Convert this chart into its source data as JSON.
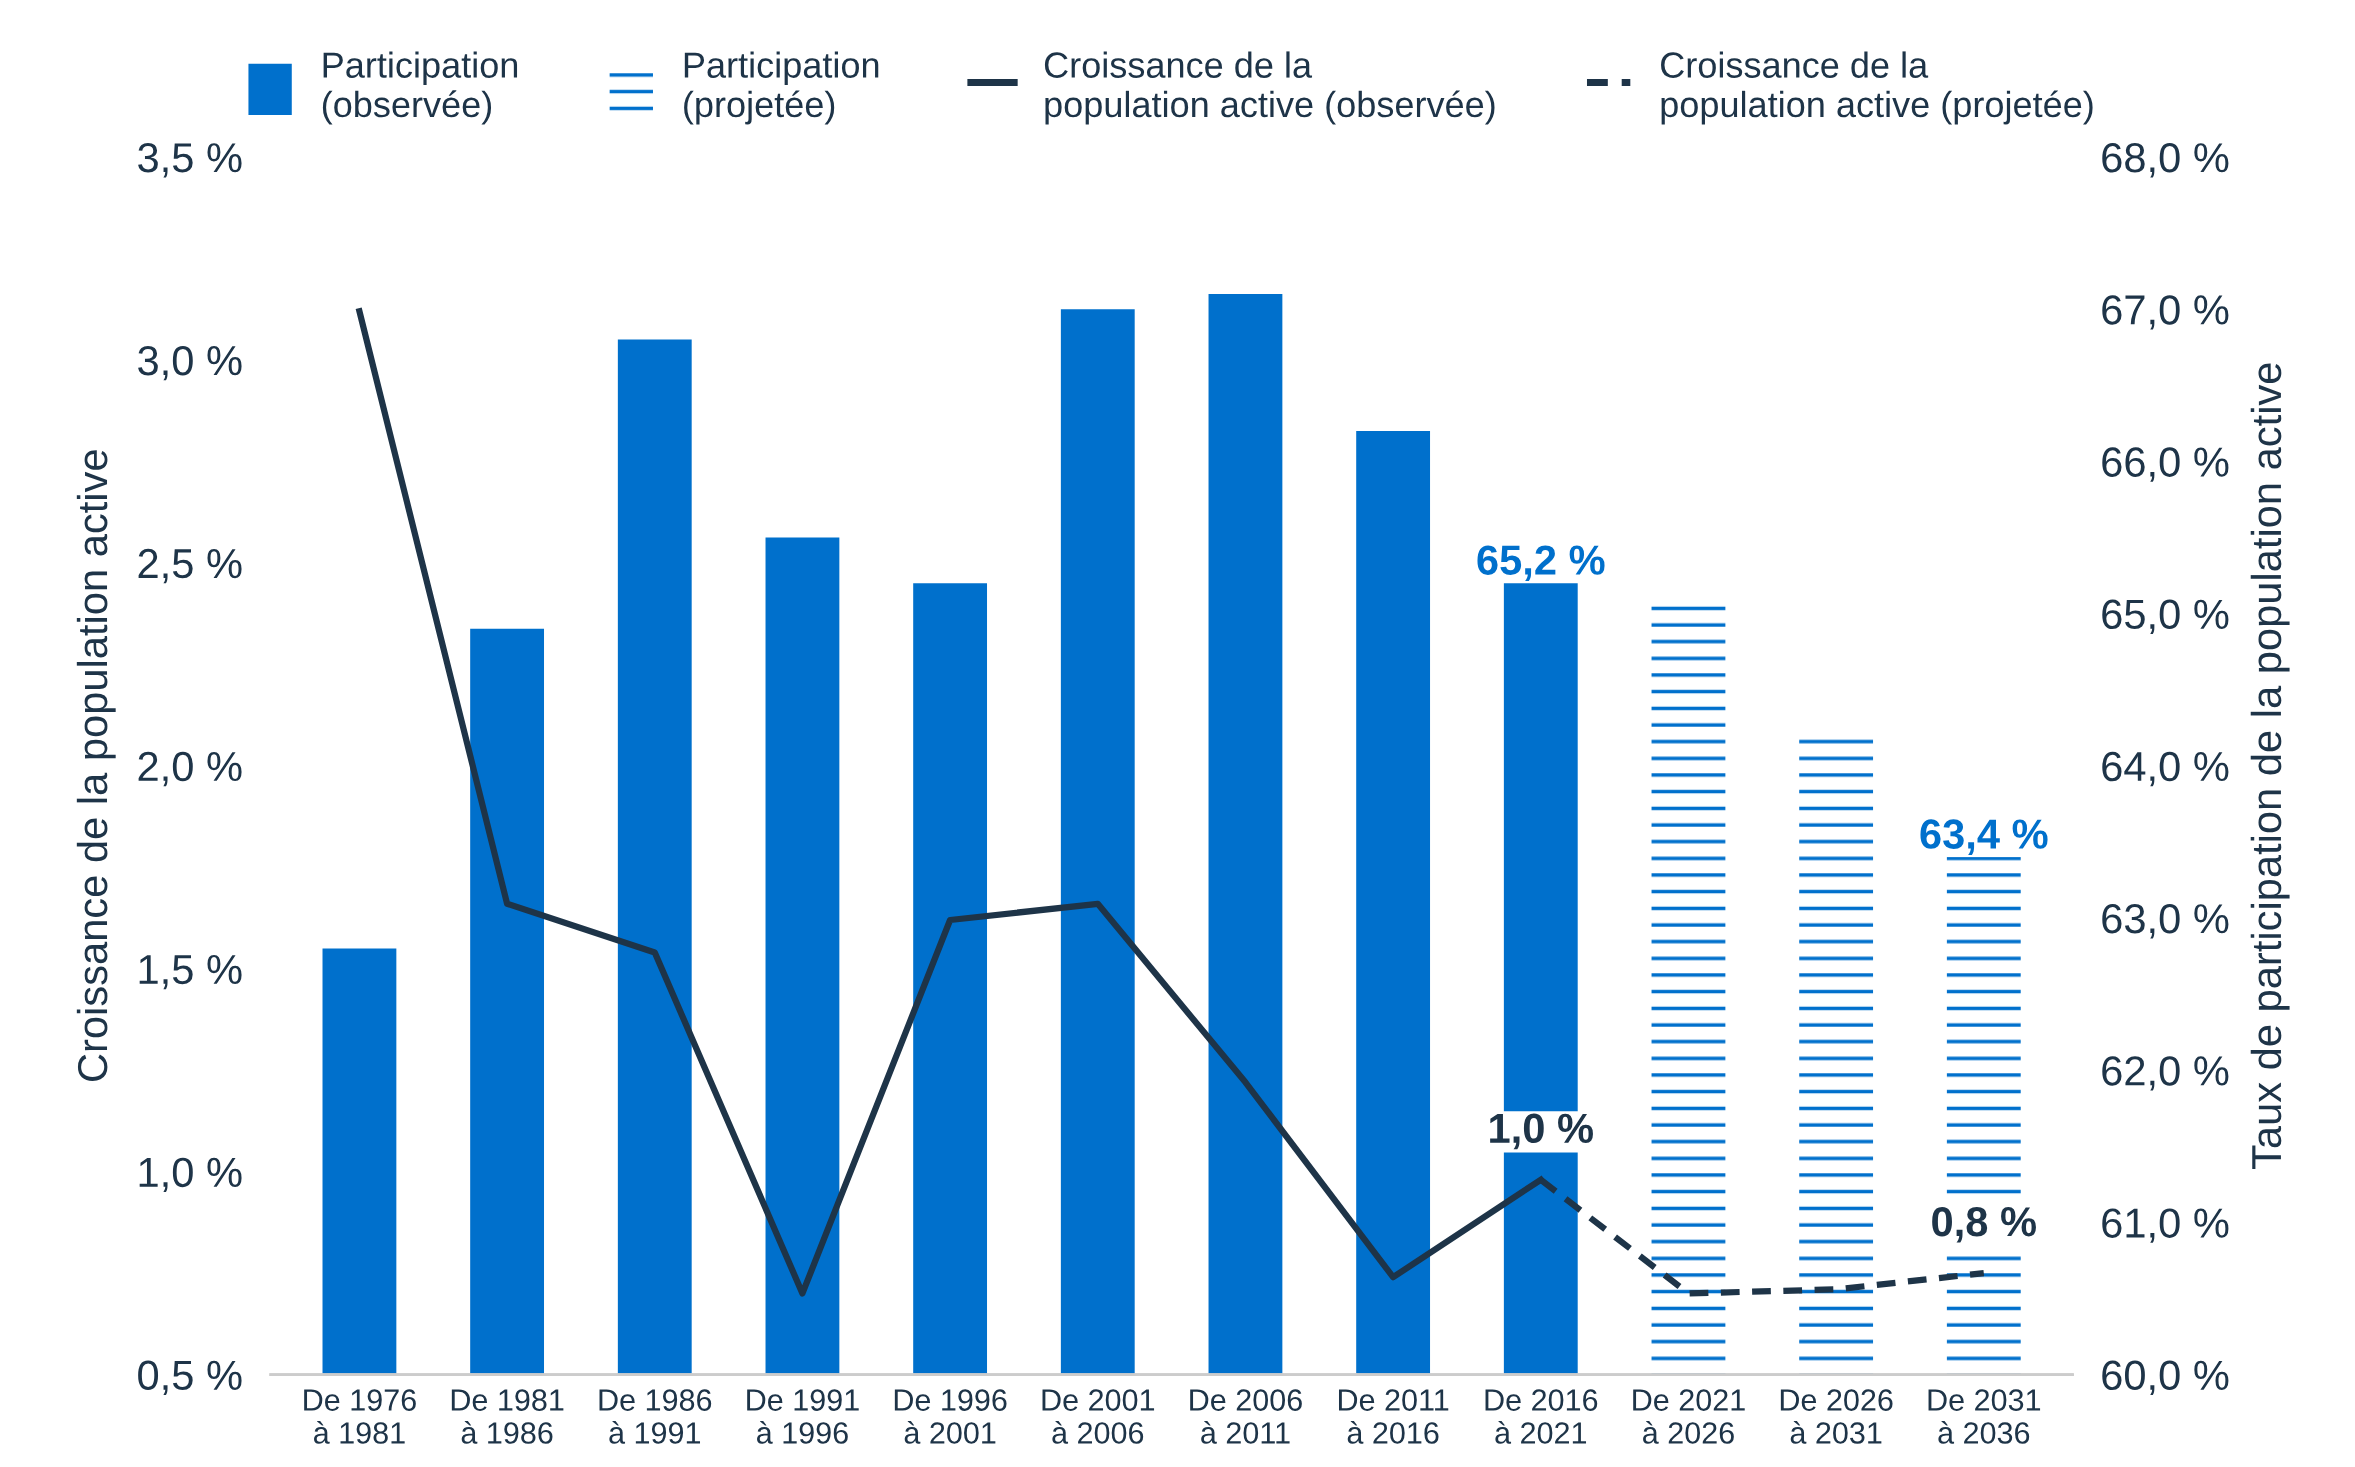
{
  "chart_data": {
    "type": "bar",
    "ylabel": "Croissance de la population active",
    "y2label": "Taux de participation de la population active",
    "categories": [
      "De 1976\nà 1981",
      "De 1981\nà 1986",
      "De 1986\nà 1991",
      "De 1991\nà 1996",
      "De 1996\nà 2001",
      "De 2001\nà 2006",
      "De 2006\nà 2011",
      "De 2011\nà 2016",
      "De 2016\nà 2021",
      "De 2021\nà 2026",
      "De 2026\nà 2031",
      "De 2031\nà 2036"
    ],
    "series": [
      {
        "name": "Participation\n(observée)",
        "axis": "y2",
        "color": "#0070cc",
        "values": [
          62.8,
          64.9,
          66.8,
          65.5,
          65.2,
          67.0,
          67.1,
          66.2,
          65.2,
          null,
          null,
          null
        ],
        "value_labels": [
          null,
          null,
          null,
          null,
          null,
          null,
          null,
          null,
          "65,2 %",
          null,
          null,
          null
        ]
      },
      {
        "name": "Participation\n(projetée)",
        "axis": "y2",
        "color": "#0070cc",
        "values": [
          null,
          null,
          null,
          null,
          null,
          null,
          null,
          null,
          null,
          65.1,
          64.2,
          63.4
        ],
        "value_labels": [
          null,
          null,
          null,
          null,
          null,
          null,
          null,
          null,
          null,
          null,
          null,
          "63,4 %"
        ]
      },
      {
        "name": "Croissance de la\npopulation active (observée)",
        "type": "line",
        "color": "#1e3448",
        "line_style": "solid",
        "values": [
          3.12,
          1.66,
          1.54,
          0.7,
          1.62,
          1.66,
          1.22,
          0.74,
          0.98,
          null,
          null,
          null
        ],
        "value_labels": [
          null,
          null,
          null,
          null,
          null,
          null,
          null,
          null,
          "1,0 %",
          null,
          null,
          null
        ]
      },
      {
        "name": "Croissance de la\npopulation active (projetée)",
        "type": "line",
        "color": "#1e3448",
        "line_style": "dashed",
        "values": [
          null,
          null,
          null,
          null,
          null,
          null,
          null,
          null,
          0.98,
          0.7,
          0.71,
          0.75
        ],
        "value_labels": [
          null,
          null,
          null,
          null,
          null,
          null,
          null,
          null,
          null,
          null,
          null,
          "0,8 %"
        ]
      }
    ],
    "ylim": [
      0.5,
      3.5
    ],
    "yticks": [
      {
        "value": 0.5,
        "label": "0,5 %"
      },
      {
        "value": 1.0,
        "label": "1,0 %"
      },
      {
        "value": 1.5,
        "label": "1,5 %"
      },
      {
        "value": 2.0,
        "label": "2,0 %"
      },
      {
        "value": 2.5,
        "label": "2,5 %"
      },
      {
        "value": 3.0,
        "label": "3,0 %"
      },
      {
        "value": 3.5,
        "label": "3,5 %"
      }
    ],
    "y2lim": [
      60,
      68
    ],
    "y2ticks": [
      {
        "value": 60,
        "label": "60,0 %"
      },
      {
        "value": 61,
        "label": "61,0 %"
      },
      {
        "value": 62,
        "label": "62,0 %"
      },
      {
        "value": 63,
        "label": "63,0 %"
      },
      {
        "value": 64,
        "label": "64,0 %"
      },
      {
        "value": 65,
        "label": "65,0 %"
      },
      {
        "value": 66,
        "label": "66,0 %"
      },
      {
        "value": 67,
        "label": "67,0 %"
      },
      {
        "value": 68,
        "label": "68,0 %"
      }
    ],
    "grid": false,
    "legend": "top"
  }
}
